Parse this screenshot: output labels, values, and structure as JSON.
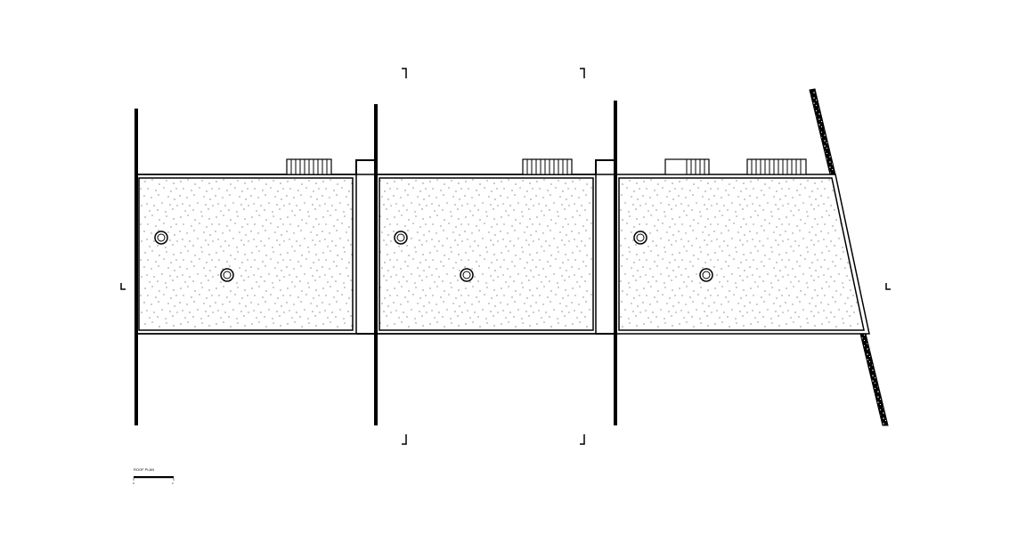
{
  "drawing": {
    "type": "roof plan",
    "units_count": 3,
    "roof_finish": "gravel",
    "drains_per_unit": 2,
    "colors": {
      "line": "#000000",
      "paper": "#ffffff",
      "fill_dots": "#000000"
    }
  },
  "scale_bar": {
    "label": "ROOF PLAN",
    "tick_start": "0",
    "tick_end": "2"
  }
}
